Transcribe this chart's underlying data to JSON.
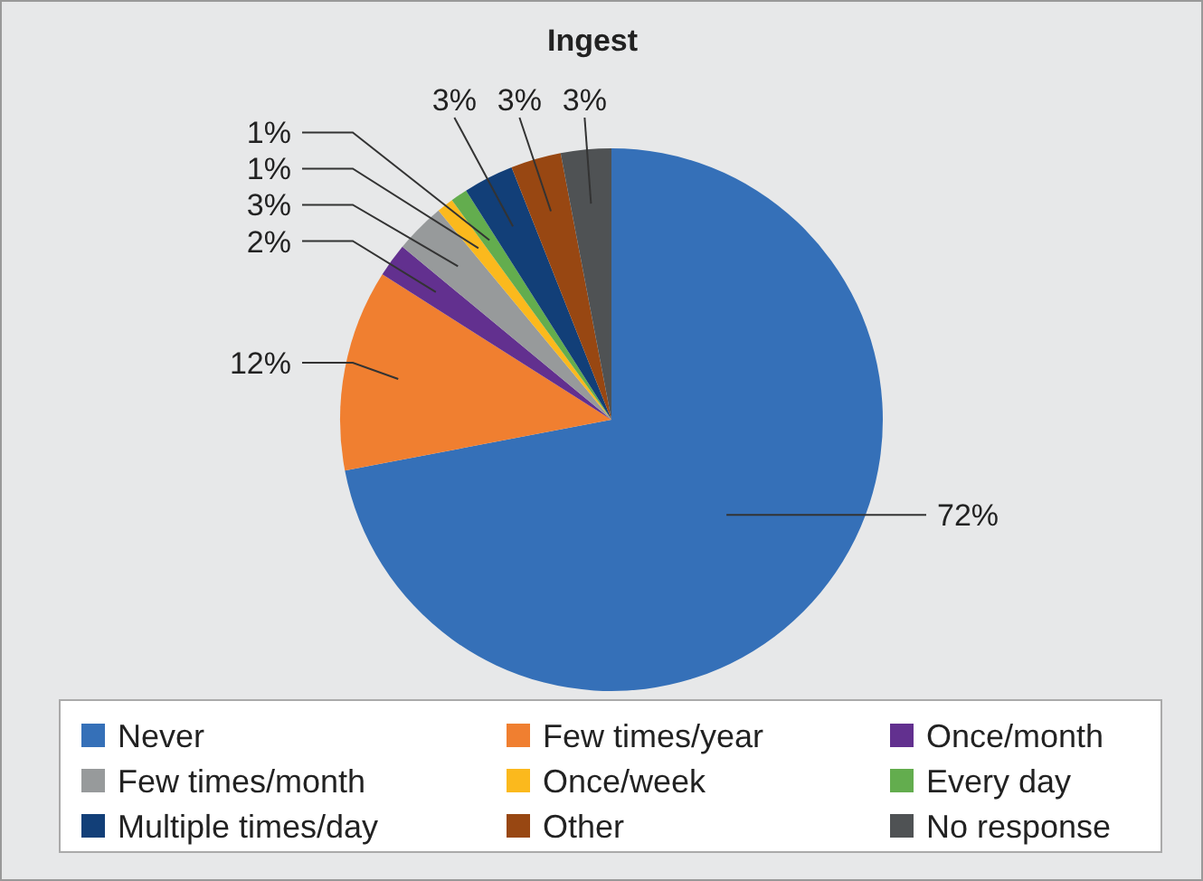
{
  "chart_data": {
    "type": "pie",
    "title": "Ingest",
    "categories": [
      "Never",
      "Few times/year",
      "Once/month",
      "Few times/month",
      "Once/week",
      "Every day",
      "Multiple times/day",
      "Other",
      "No response"
    ],
    "values": [
      72,
      12,
      2,
      3,
      1,
      1,
      3,
      3,
      3
    ],
    "colors": [
      "#3570b8",
      "#f07f30",
      "#62308f",
      "#979a9b",
      "#fbb91d",
      "#63ad4e",
      "#123f78",
      "#984712",
      "#4f5254"
    ],
    "value_labels": [
      "72%",
      "12%",
      "2%",
      "3%",
      "1%",
      "1%",
      "3%",
      "3%",
      "3%"
    ],
    "legend": "bottom"
  }
}
